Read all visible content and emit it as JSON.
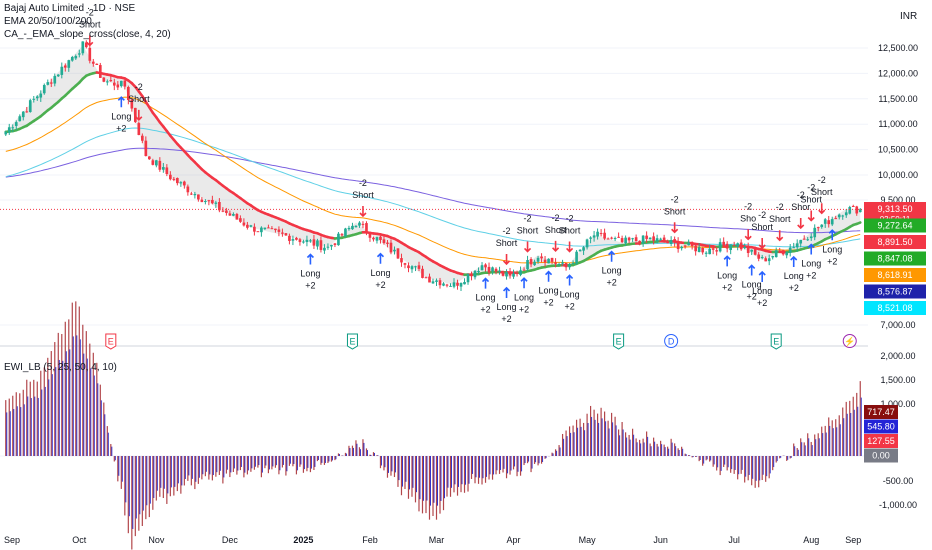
{
  "header": {
    "title": "Bajaj Auto Limited · 1D · NSE",
    "indicators": [
      "EMA 20/50/100/200",
      "CA_-_EMA_slope_cross(close, 4, 20)"
    ],
    "currency": "INR"
  },
  "lower_pane": {
    "title": "EWI_LB (5, 25, 50, 4, 10)"
  },
  "chart_data": [
    {
      "type": "candlestick",
      "title": "Bajaj Auto Limited · 1D · NSE",
      "ylim": [
        6700,
        13000
      ],
      "y_ticks": [
        "12,500.00",
        "12,000.00",
        "11,500.00",
        "11,000.00",
        "10,500.00",
        "10,000.00",
        "9,500.00",
        "7,000.00"
      ],
      "x_ticks": [
        "Sep",
        "Oct",
        "Nov",
        "Dec",
        "2025",
        "Feb",
        "Mar",
        "Apr",
        "May",
        "Jun",
        "Jul",
        "Aug",
        "Sep"
      ],
      "price_keypoints": [
        {
          "d": 0,
          "p": 10850
        },
        {
          "d": 12,
          "p": 11800
        },
        {
          "d": 22,
          "p": 12550
        },
        {
          "d": 28,
          "p": 11850
        },
        {
          "d": 34,
          "p": 11750
        },
        {
          "d": 40,
          "p": 10400
        },
        {
          "d": 48,
          "p": 9900
        },
        {
          "d": 58,
          "p": 9450
        },
        {
          "d": 70,
          "p": 8950
        },
        {
          "d": 82,
          "p": 8750
        },
        {
          "d": 92,
          "p": 8550
        },
        {
          "d": 100,
          "p": 9050
        },
        {
          "d": 110,
          "p": 8500
        },
        {
          "d": 120,
          "p": 7950
        },
        {
          "d": 128,
          "p": 7800
        },
        {
          "d": 136,
          "p": 8200
        },
        {
          "d": 144,
          "p": 7950
        },
        {
          "d": 152,
          "p": 8400
        },
        {
          "d": 160,
          "p": 8150
        },
        {
          "d": 168,
          "p": 8800
        },
        {
          "d": 176,
          "p": 8650
        },
        {
          "d": 184,
          "p": 8720
        },
        {
          "d": 192,
          "p": 8600
        },
        {
          "d": 200,
          "p": 8500
        },
        {
          "d": 208,
          "p": 8650
        },
        {
          "d": 216,
          "p": 8300
        },
        {
          "d": 224,
          "p": 8550
        },
        {
          "d": 232,
          "p": 8950
        },
        {
          "d": 240,
          "p": 9320
        },
        {
          "d": 244,
          "p": 9313.5
        }
      ],
      "price_labels": [
        {
          "text": "9,313.50",
          "sub": "03:50:11",
          "color": "#f23645",
          "p": 9313.5
        },
        {
          "text": "9,272.64",
          "color": "#22ab27",
          "p": 9180
        },
        {
          "text": "8,891.50",
          "color": "#f23645",
          "p": 9000
        },
        {
          "text": "8,847.08",
          "color": "#22ab27",
          "p": 8820
        },
        {
          "text": "8,618.91",
          "color": "#ff9800",
          "p": 8640
        },
        {
          "text": "8,576.87",
          "color": "#1e22aa",
          "p": 8460
        },
        {
          "text": "8,521.08",
          "color": "#00e5ff",
          "p": 8290
        }
      ],
      "signals": [
        {
          "type": "short",
          "text": [
            "-2",
            "Short"
          ],
          "d": 24
        },
        {
          "type": "long",
          "text": [
            "Long",
            "+2"
          ],
          "d": 33
        },
        {
          "type": "short",
          "text": [
            "-2",
            "Short"
          ],
          "d": 38
        },
        {
          "type": "long",
          "text": [
            "Long",
            "+2"
          ],
          "d": 87
        },
        {
          "type": "short",
          "text": [
            "-2",
            "Short"
          ],
          "d": 102
        },
        {
          "type": "long",
          "text": [
            "Long",
            "+2"
          ],
          "d": 107
        },
        {
          "type": "long",
          "text": [
            "Long",
            "+2"
          ],
          "d": 137
        },
        {
          "type": "short",
          "text": [
            "-2",
            "Short"
          ],
          "d": 143
        },
        {
          "type": "long",
          "text": [
            "Long",
            "+2"
          ],
          "d": 143
        },
        {
          "type": "short",
          "text": [
            "-2",
            "Short"
          ],
          "d": 149
        },
        {
          "type": "long",
          "text": [
            "Long",
            "+2"
          ],
          "d": 148
        },
        {
          "type": "short",
          "text": [
            "-2",
            "Short"
          ],
          "d": 157
        },
        {
          "type": "long",
          "text": [
            "Long",
            "+2"
          ],
          "d": 155
        },
        {
          "type": "short",
          "text": [
            "-2",
            "Short"
          ],
          "d": 161
        },
        {
          "type": "long",
          "text": [
            "Long",
            "+2"
          ],
          "d": 161
        },
        {
          "type": "long",
          "text": [
            "Long",
            "+2"
          ],
          "d": 173
        },
        {
          "type": "short",
          "text": [
            "-2",
            "Short"
          ],
          "d": 191
        },
        {
          "type": "long",
          "text": [
            "Long",
            "+2"
          ],
          "d": 206
        },
        {
          "type": "short",
          "text": [
            "-2",
            "Sho"
          ],
          "d": 212
        },
        {
          "type": "short",
          "text": [
            "-2",
            "Short"
          ],
          "d": 216
        },
        {
          "type": "long",
          "text": [
            "Long",
            "+2"
          ],
          "d": 213
        },
        {
          "type": "short",
          "text": [
            "-2",
            "Short"
          ],
          "d": 221
        },
        {
          "type": "long",
          "text": [
            "Long",
            "+2"
          ],
          "d": 216
        },
        {
          "type": "short",
          "text": [
            "-2",
            "Shor"
          ],
          "d": 227
        },
        {
          "type": "long",
          "text": [
            "Long",
            "+2"
          ],
          "d": 225
        },
        {
          "type": "short",
          "text": [
            "-2",
            "Short"
          ],
          "d": 230
        },
        {
          "type": "long",
          "text": [
            "Long",
            "+2"
          ],
          "d": 230
        },
        {
          "type": "long",
          "text": [
            "Long",
            "+2"
          ],
          "d": 236
        },
        {
          "type": "short",
          "text": [
            "-2",
            "Short"
          ],
          "d": 233
        }
      ],
      "events": [
        {
          "letter": "E",
          "color": "#f23645",
          "d": 30
        },
        {
          "letter": "E",
          "color": "#089981",
          "d": 99
        },
        {
          "letter": "E",
          "color": "#089981",
          "d": 175
        },
        {
          "letter": "D",
          "color": "#2962ff",
          "d": 190
        },
        {
          "letter": "E",
          "color": "#089981",
          "d": 220
        },
        {
          "letter": "⚡",
          "color": "#9c27b0",
          "d": 241
        }
      ]
    },
    {
      "type": "histogram",
      "title": "EWI_LB (5, 25, 50, 4, 10)",
      "ylim": [
        -1100,
        2100
      ],
      "y_ticks": [
        "2,000.00",
        "1,500.00",
        "1,000.00",
        "-500.00",
        "-1,000.00"
      ],
      "osc_keypoints": [
        {
          "d": 0,
          "v": 600
        },
        {
          "d": 10,
          "v": 800
        },
        {
          "d": 20,
          "v": 1550
        },
        {
          "d": 26,
          "v": 900
        },
        {
          "d": 32,
          "v": -200
        },
        {
          "d": 36,
          "v": -900
        },
        {
          "d": 42,
          "v": -500
        },
        {
          "d": 52,
          "v": -300
        },
        {
          "d": 64,
          "v": -200
        },
        {
          "d": 76,
          "v": -150
        },
        {
          "d": 92,
          "v": -100
        },
        {
          "d": 102,
          "v": 150
        },
        {
          "d": 112,
          "v": -300
        },
        {
          "d": 122,
          "v": -650
        },
        {
          "d": 128,
          "v": -350
        },
        {
          "d": 140,
          "v": -200
        },
        {
          "d": 150,
          "v": -120
        },
        {
          "d": 160,
          "v": 200
        },
        {
          "d": 168,
          "v": 500
        },
        {
          "d": 178,
          "v": 250
        },
        {
          "d": 190,
          "v": 120
        },
        {
          "d": 202,
          "v": -100
        },
        {
          "d": 214,
          "v": -300
        },
        {
          "d": 226,
          "v": 100
        },
        {
          "d": 234,
          "v": 300
        },
        {
          "d": 244,
          "v": 700
        }
      ],
      "value_labels": [
        {
          "text": "717.47",
          "color": "#880e0e"
        },
        {
          "text": "545.80",
          "color": "#2424d6"
        },
        {
          "text": "127.55",
          "color": "#f23645"
        },
        {
          "text": "0.00",
          "color": "#787b86"
        }
      ]
    }
  ],
  "colors": {
    "up": "#22ab94",
    "down": "#f23645",
    "ema20_up": "#4caf50",
    "ema20_down": "#f23645",
    "ema50": "#ff9800",
    "ema100": "#5fd0e6",
    "ema200": "#7b61e0",
    "grid": "#f0f3fa",
    "axis_text": "#131722",
    "hist_red": "#b2464a",
    "hist_blue": "#3535c8"
  }
}
